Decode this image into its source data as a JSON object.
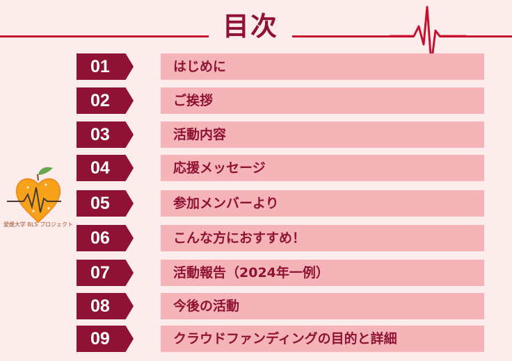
{
  "title": "目次",
  "logo_text": "愛媛大学 BLS プロジェクト",
  "items": [
    {
      "num": "01",
      "label": "はじめに"
    },
    {
      "num": "02",
      "label": "ご挨拶"
    },
    {
      "num": "03",
      "label": "活動内容"
    },
    {
      "num": "04",
      "label": "応援メッセージ"
    },
    {
      "num": "05",
      "label": "参加メンバーより"
    },
    {
      "num": "06",
      "label": "こんな方におすすめ！"
    },
    {
      "num": "07",
      "label": "活動報告（2024年一例）"
    },
    {
      "num": "08",
      "label": "今後の活動"
    },
    {
      "num": "09",
      "label": "クラウドファンディングの目的と詳細"
    }
  ],
  "colors": {
    "accent": "#8f1133",
    "line": "#c8102e",
    "bar": "#f5b5b8",
    "background": "#fcecec"
  }
}
